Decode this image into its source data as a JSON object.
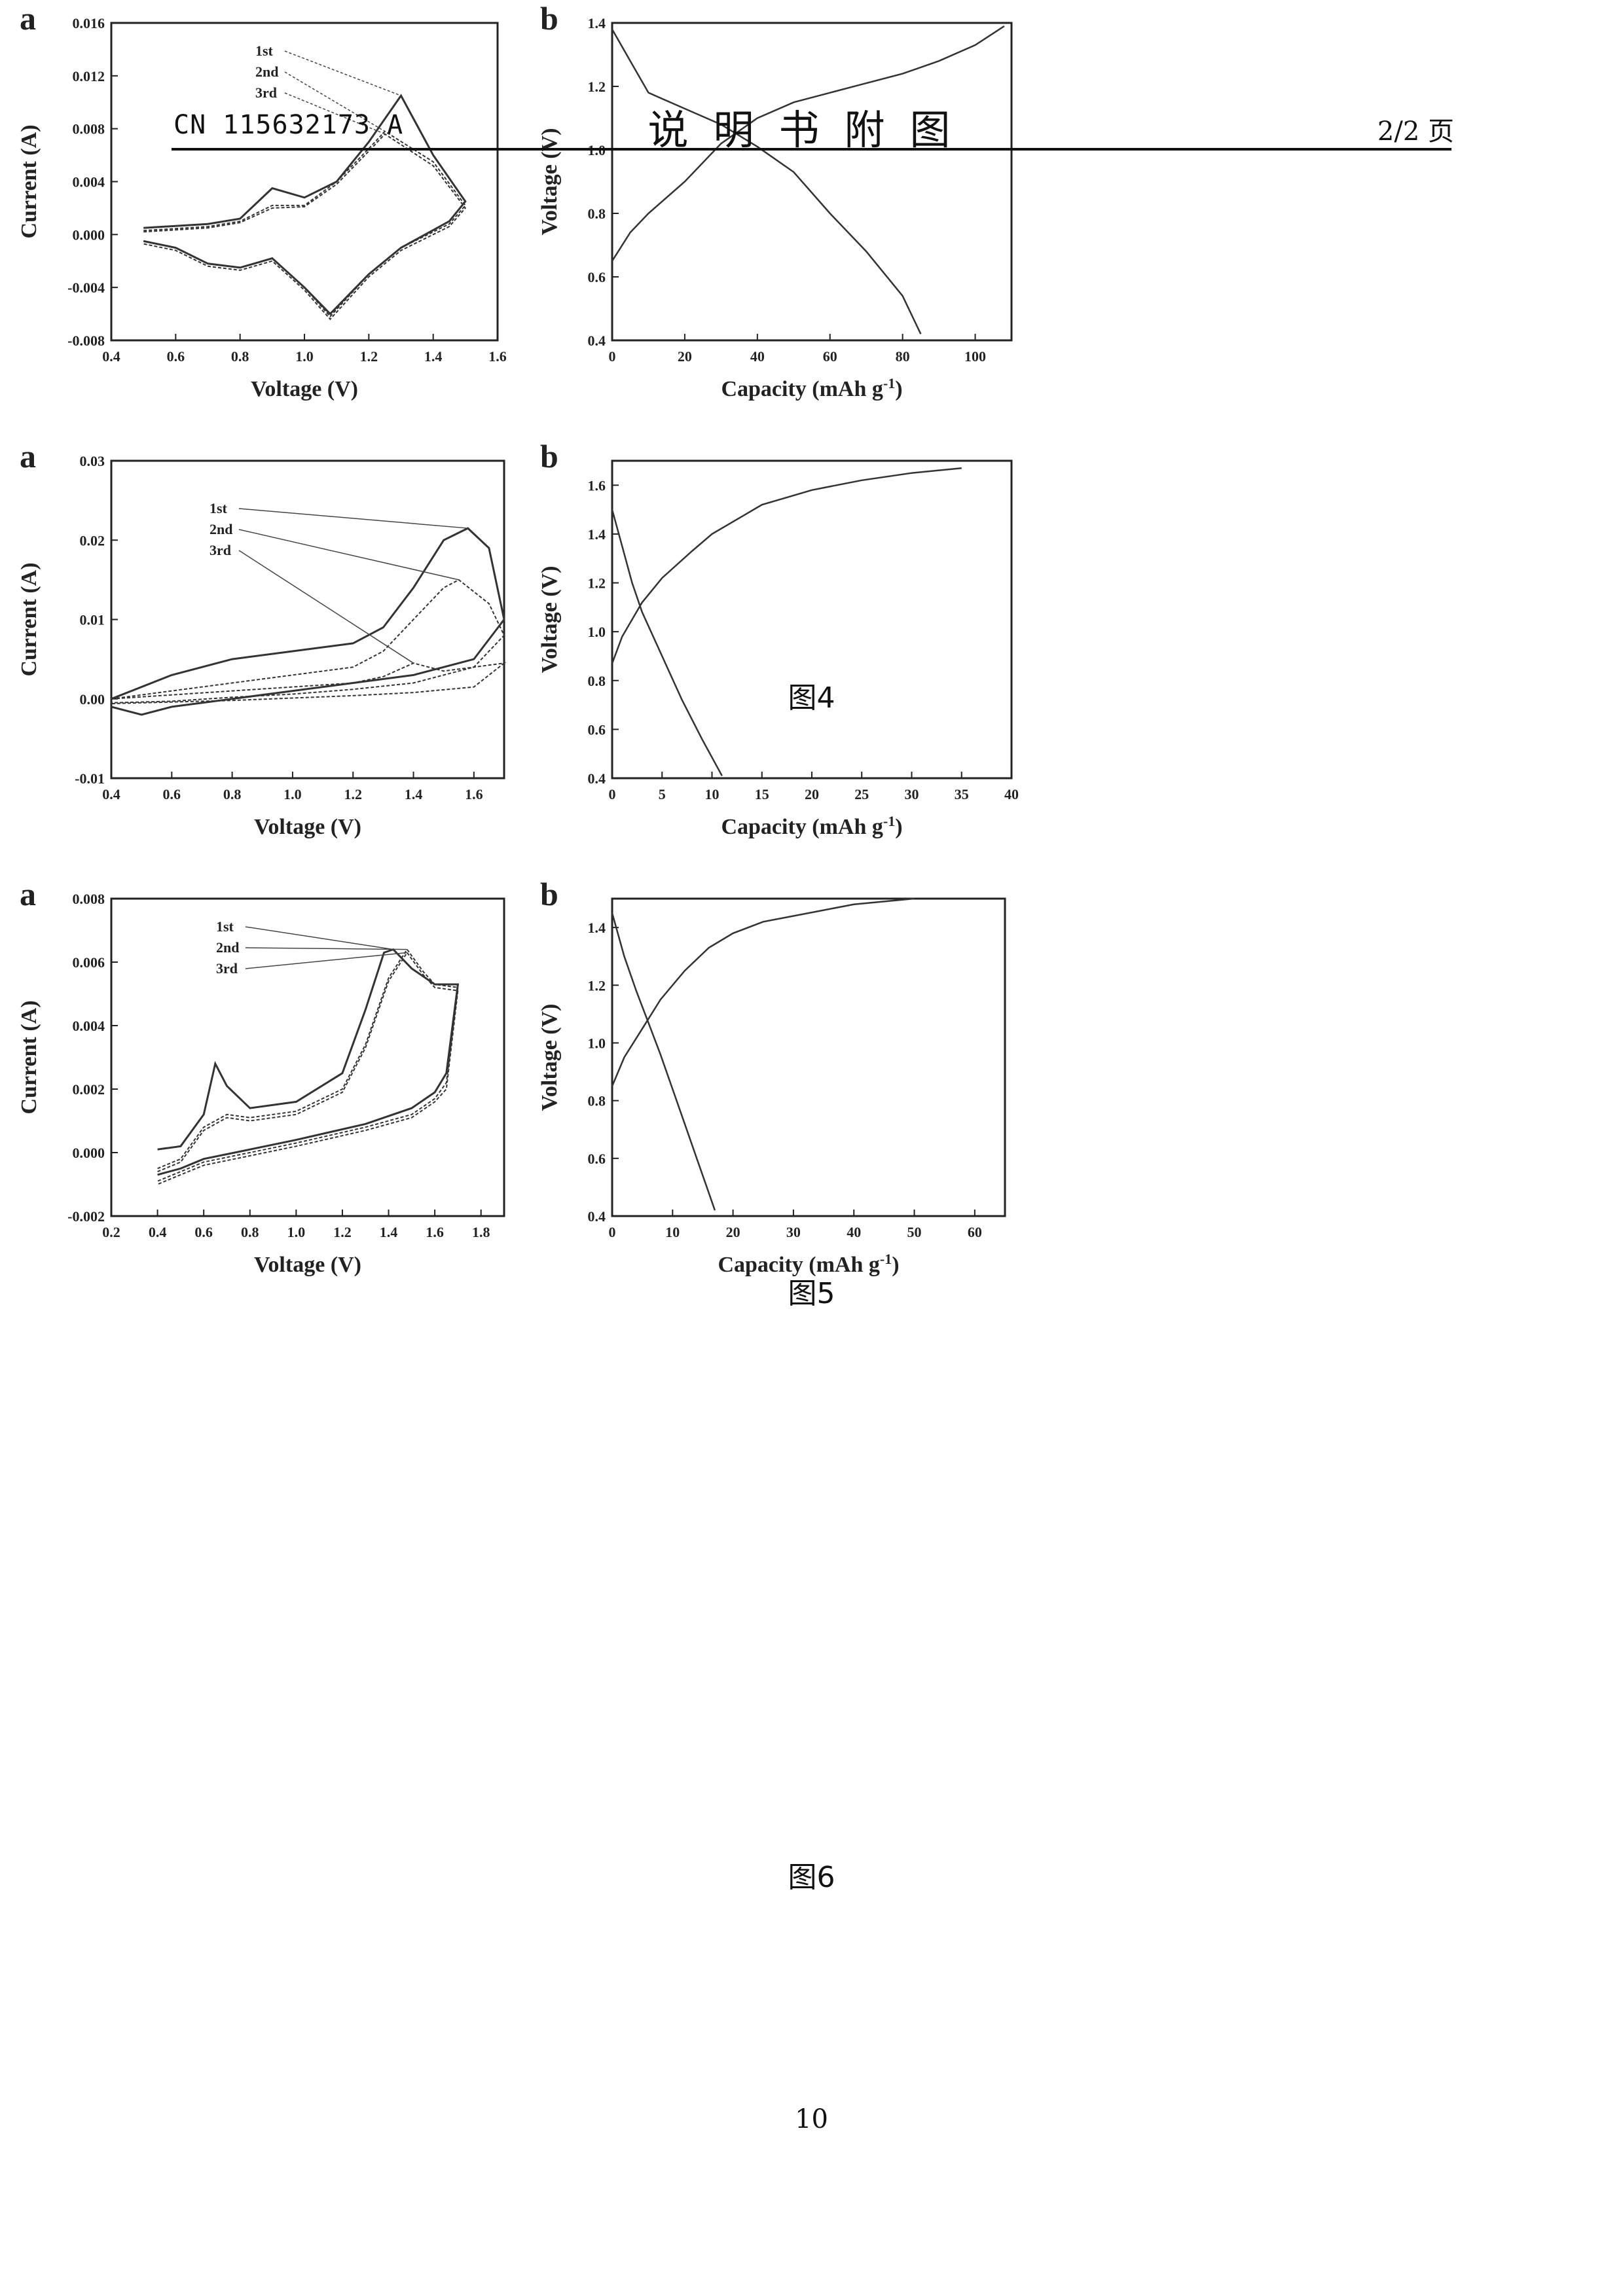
{
  "header": {
    "left": "CN 115632173 A",
    "center": "说明书附图",
    "right": "2/2 页"
  },
  "page_number": "10",
  "figures": [
    {
      "caption": "图4",
      "panels": [
        {
          "label": "a",
          "xlabel": "Voltage (V)",
          "ylabel": "Current (A)",
          "legend": [
            "1st",
            "2nd",
            "3rd"
          ],
          "xticks": [
            "0.4",
            "0.6",
            "0.8",
            "1.0",
            "1.2",
            "1.4",
            "1.6"
          ],
          "yticks": [
            "0.016",
            "0.012",
            "0.008",
            "0.004",
            "0.000",
            "-0.004",
            "-0.008"
          ]
        },
        {
          "label": "b",
          "xlabel": "Capacity (mAh g",
          "xlabel_sup": "-1",
          "xlabel_end": ")",
          "ylabel": "Voltage (V)",
          "xticks": [
            "0",
            "20",
            "40",
            "60",
            "80",
            "100"
          ],
          "yticks": [
            "1.4",
            "1.2",
            "1.0",
            "0.8",
            "0.6",
            "0.4"
          ]
        }
      ]
    },
    {
      "caption": "图5",
      "panels": [
        {
          "label": "a",
          "xlabel": "Voltage (V)",
          "ylabel": "Current (A)",
          "legend": [
            "1st",
            "2nd",
            "3rd"
          ],
          "xticks": [
            "0.4",
            "0.6",
            "0.8",
            "1.0",
            "1.2",
            "1.4",
            "1.6"
          ],
          "yticks": [
            "0.03",
            "0.02",
            "0.01",
            "0.00",
            "-0.01"
          ]
        },
        {
          "label": "b",
          "xlabel": "Capacity (mAh g",
          "xlabel_sup": "-1",
          "xlabel_end": ")",
          "ylabel": "Voltage (V)",
          "xticks": [
            "0",
            "5",
            "10",
            "15",
            "20",
            "25",
            "30",
            "35",
            "40"
          ],
          "yticks": [
            "1.6",
            "1.4",
            "1.2",
            "1.0",
            "0.8",
            "0.6",
            "0.4"
          ]
        }
      ]
    },
    {
      "caption": "图6",
      "panels": [
        {
          "label": "a",
          "xlabel": "Voltage (V)",
          "ylabel": "Current (A)",
          "legend": [
            "1st",
            "2nd",
            "3rd"
          ],
          "xticks": [
            "0.2",
            "0.4",
            "0.6",
            "0.8",
            "1.0",
            "1.2",
            "1.4",
            "1.6",
            "1.8"
          ],
          "yticks": [
            "0.008",
            "0.006",
            "0.004",
            "0.002",
            "0.000",
            "-0.002"
          ]
        },
        {
          "label": "b",
          "xlabel": "Capacity (mAh g",
          "xlabel_sup": "-1",
          "xlabel_end": ")",
          "ylabel": "Voltage (V)",
          "xticks": [
            "0",
            "10",
            "20",
            "30",
            "40",
            "50",
            "60"
          ],
          "yticks": [
            "1.4",
            "1.2",
            "1.0",
            "0.8",
            "0.6",
            "0.4"
          ]
        }
      ]
    }
  ],
  "chart_data": [
    {
      "type": "line",
      "figure": "图4",
      "panel": "a",
      "xlabel": "Voltage (V)",
      "ylabel": "Current (A)",
      "xlim": [
        0.4,
        1.6
      ],
      "ylim": [
        -0.008,
        0.016
      ],
      "series": [
        {
          "name": "1st",
          "x": [
            0.5,
            0.7,
            0.8,
            0.9,
            1.0,
            1.1,
            1.2,
            1.3,
            1.4,
            1.5,
            1.45,
            1.3,
            1.2,
            1.08,
            1.0,
            0.9,
            0.8,
            0.7,
            0.6,
            0.5
          ],
          "y": [
            0.0005,
            0.0008,
            0.0012,
            0.0035,
            0.0028,
            0.004,
            0.007,
            0.0105,
            0.006,
            0.0025,
            0.001,
            -0.001,
            -0.003,
            -0.006,
            -0.004,
            -0.0018,
            -0.0025,
            -0.0022,
            -0.001,
            -0.0005
          ]
        },
        {
          "name": "2nd",
          "x": [
            0.5,
            0.7,
            0.8,
            0.9,
            1.0,
            1.1,
            1.2,
            1.25,
            1.4,
            1.5,
            1.45,
            1.3,
            1.2,
            1.08,
            1.0,
            0.9,
            0.8,
            0.7,
            0.6,
            0.5
          ],
          "y": [
            0.0003,
            0.0006,
            0.001,
            0.0022,
            0.0022,
            0.004,
            0.0065,
            0.0078,
            0.0055,
            0.0022,
            0.0008,
            -0.001,
            -0.003,
            -0.0062,
            -0.004,
            -0.0018,
            -0.0025,
            -0.0022,
            -0.001,
            -0.0005
          ]
        },
        {
          "name": "3rd",
          "x": [
            0.5,
            0.7,
            0.8,
            0.9,
            1.0,
            1.1,
            1.2,
            1.25,
            1.4,
            1.5,
            1.45,
            1.3,
            1.2,
            1.08,
            1.0,
            0.9,
            0.8,
            0.7,
            0.6,
            0.5
          ],
          "y": [
            0.0002,
            0.0005,
            0.0009,
            0.002,
            0.0021,
            0.0038,
            0.0063,
            0.0076,
            0.0052,
            0.002,
            0.0006,
            -0.0012,
            -0.0032,
            -0.0064,
            -0.0042,
            -0.002,
            -0.0027,
            -0.0024,
            -0.0012,
            -0.0007
          ]
        }
      ]
    },
    {
      "type": "line",
      "figure": "图4",
      "panel": "b",
      "xlabel": "Capacity (mAh g-1)",
      "ylabel": "Voltage (V)",
      "xlim": [
        0,
        110
      ],
      "ylim": [
        0.4,
        1.4
      ],
      "series": [
        {
          "x": [
            0,
            5,
            10,
            20,
            30,
            40,
            50,
            60,
            70,
            80,
            90,
            100,
            108
          ],
          "y": [
            0.65,
            0.74,
            0.8,
            0.9,
            1.02,
            1.1,
            1.15,
            1.18,
            1.21,
            1.24,
            1.28,
            1.33,
            1.39
          ]
        },
        {
          "x": [
            0,
            5,
            10,
            20,
            30,
            40,
            50,
            60,
            70,
            80,
            85
          ],
          "y": [
            1.38,
            1.28,
            1.18,
            1.13,
            1.08,
            1.01,
            0.93,
            0.8,
            0.68,
            0.54,
            0.42
          ]
        }
      ]
    },
    {
      "type": "line",
      "figure": "图5",
      "panel": "a",
      "xlabel": "Voltage (V)",
      "ylabel": "Current (A)",
      "xlim": [
        0.4,
        1.7
      ],
      "ylim": [
        -0.01,
        0.03
      ],
      "series": [
        {
          "name": "1st",
          "x": [
            0.4,
            0.6,
            0.8,
            1.0,
            1.2,
            1.3,
            1.4,
            1.5,
            1.58,
            1.65,
            1.7,
            1.6,
            1.4,
            1.2,
            1.0,
            0.8,
            0.6,
            0.5,
            0.4
          ],
          "y": [
            0.0,
            0.003,
            0.005,
            0.006,
            0.007,
            0.009,
            0.014,
            0.02,
            0.0215,
            0.019,
            0.01,
            0.005,
            0.003,
            0.002,
            0.001,
            0.0,
            -0.001,
            -0.002,
            -0.001
          ]
        },
        {
          "name": "2nd",
          "x": [
            0.4,
            0.6,
            0.8,
            1.0,
            1.2,
            1.3,
            1.4,
            1.5,
            1.55,
            1.65,
            1.7,
            1.6,
            1.4,
            1.2,
            1.0,
            0.8,
            0.6,
            0.4
          ],
          "y": [
            0.0,
            0.001,
            0.002,
            0.003,
            0.004,
            0.006,
            0.01,
            0.014,
            0.015,
            0.012,
            0.008,
            0.004,
            0.002,
            0.0012,
            0.0006,
            0.0002,
            -0.0003,
            -0.0005
          ]
        },
        {
          "name": "3rd",
          "x": [
            0.4,
            0.6,
            0.8,
            1.0,
            1.2,
            1.3,
            1.4,
            1.5,
            1.6,
            1.7,
            1.6,
            1.4,
            1.2,
            1.0,
            0.8,
            0.6,
            0.4
          ],
          "y": [
            0.0,
            0.0005,
            0.001,
            0.0015,
            0.002,
            0.0028,
            0.0045,
            0.0035,
            0.004,
            0.0045,
            0.0015,
            0.0008,
            0.0004,
            0.0001,
            -0.0002,
            -0.0004,
            -0.0006
          ]
        }
      ]
    },
    {
      "type": "line",
      "figure": "图5",
      "panel": "b",
      "xlabel": "Capacity (mAh g-1)",
      "ylabel": "Voltage (V)",
      "xlim": [
        0,
        40
      ],
      "ylim": [
        0.4,
        1.7
      ],
      "series": [
        {
          "x": [
            0,
            1,
            2,
            3,
            5,
            8,
            10,
            15,
            20,
            25,
            30,
            35
          ],
          "y": [
            0.87,
            0.98,
            1.05,
            1.12,
            1.22,
            1.33,
            1.4,
            1.52,
            1.58,
            1.62,
            1.65,
            1.67
          ]
        },
        {
          "x": [
            0,
            1,
            2,
            3,
            5,
            7,
            9,
            11
          ],
          "y": [
            1.5,
            1.35,
            1.2,
            1.08,
            0.9,
            0.72,
            0.56,
            0.41
          ]
        }
      ]
    },
    {
      "type": "line",
      "figure": "图6",
      "panel": "a",
      "xlabel": "Voltage (V)",
      "ylabel": "Current (A)",
      "xlim": [
        0.2,
        1.9
      ],
      "ylim": [
        -0.002,
        0.008
      ],
      "series": [
        {
          "name": "1st",
          "x": [
            0.4,
            0.5,
            0.6,
            0.65,
            0.7,
            0.8,
            1.0,
            1.2,
            1.3,
            1.38,
            1.42,
            1.5,
            1.6,
            1.7,
            1.65,
            1.6,
            1.5,
            1.3,
            1.0,
            0.8,
            0.6,
            0.5,
            0.4
          ],
          "y": [
            0.0001,
            0.0002,
            0.0012,
            0.0028,
            0.0021,
            0.0014,
            0.0016,
            0.0025,
            0.0045,
            0.0063,
            0.0064,
            0.0058,
            0.0053,
            0.0053,
            0.0025,
            0.0019,
            0.0014,
            0.0009,
            0.0004,
            0.0001,
            -0.0002,
            -0.0005,
            -0.0007
          ]
        },
        {
          "name": "2nd",
          "x": [
            0.4,
            0.5,
            0.6,
            0.7,
            0.8,
            1.0,
            1.2,
            1.3,
            1.4,
            1.48,
            1.55,
            1.6,
            1.7,
            1.65,
            1.6,
            1.5,
            1.3,
            1.0,
            0.8,
            0.6,
            0.5,
            0.4
          ],
          "y": [
            -0.0005,
            -0.0002,
            0.0008,
            0.0012,
            0.0011,
            0.0013,
            0.002,
            0.0034,
            0.0055,
            0.0064,
            0.0057,
            0.0053,
            0.0052,
            0.0022,
            0.0017,
            0.0012,
            0.0008,
            0.0003,
            0.0,
            -0.0003,
            -0.0006,
            -0.0009
          ]
        },
        {
          "name": "3rd",
          "x": [
            0.4,
            0.5,
            0.6,
            0.7,
            0.8,
            1.0,
            1.2,
            1.3,
            1.4,
            1.48,
            1.55,
            1.6,
            1.7,
            1.65,
            1.6,
            1.5,
            1.3,
            1.0,
            0.8,
            0.6,
            0.5,
            0.4
          ],
          "y": [
            -0.0006,
            -0.0003,
            0.0007,
            0.0011,
            0.001,
            0.0012,
            0.0019,
            0.0033,
            0.0054,
            0.0063,
            0.0056,
            0.0052,
            0.0051,
            0.002,
            0.0016,
            0.0011,
            0.0007,
            0.0002,
            -0.0001,
            -0.0004,
            -0.0007,
            -0.001
          ]
        }
      ]
    },
    {
      "type": "line",
      "figure": "图6",
      "panel": "b",
      "xlabel": "Capacity (mAh g-1)",
      "ylabel": "Voltage (V)",
      "xlim": [
        0,
        65
      ],
      "ylim": [
        0.4,
        1.5
      ],
      "series": [
        {
          "x": [
            0,
            2,
            5,
            8,
            12,
            16,
            20,
            25,
            30,
            35,
            40,
            45,
            50
          ],
          "y": [
            0.85,
            0.95,
            1.05,
            1.15,
            1.25,
            1.33,
            1.38,
            1.42,
            1.44,
            1.46,
            1.48,
            1.49,
            1.5
          ]
        },
        {
          "x": [
            0,
            2,
            4,
            6,
            8,
            10,
            12,
            14,
            16,
            17
          ],
          "y": [
            1.45,
            1.3,
            1.18,
            1.07,
            0.96,
            0.84,
            0.72,
            0.6,
            0.48,
            0.42
          ]
        }
      ]
    }
  ]
}
